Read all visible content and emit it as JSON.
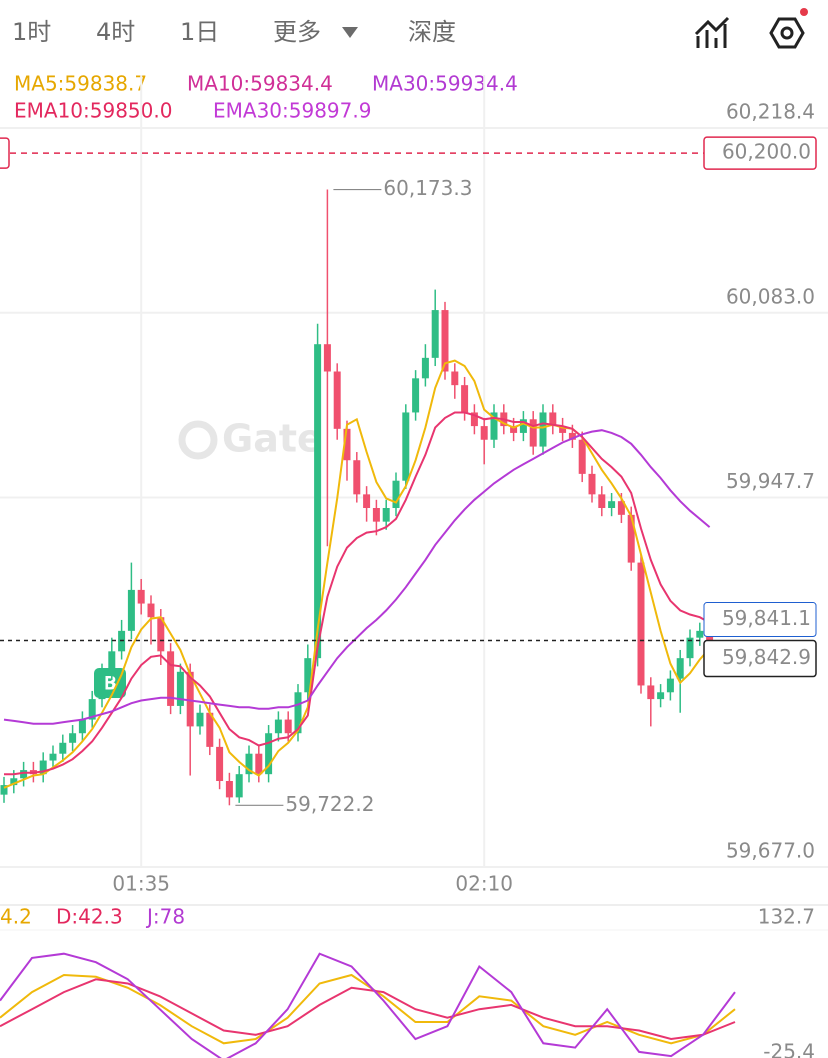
{
  "tabs": [
    "1时",
    "4时",
    "1日",
    "更多",
    "深度"
  ],
  "chart_data": [
    {
      "type": "candlestick",
      "indicators": [
        {
          "text": "MA5:59838.7",
          "color": "#e6a700"
        },
        {
          "text": "MA10:59834.4",
          "color": "#d02f97"
        },
        {
          "text": "MA30:59934.4",
          "color": "#b23ad2"
        },
        {
          "text": "EMA10:59850.0",
          "color": "#e3285e"
        },
        {
          "text": "EMA30:59897.9",
          "color": "#c23ad6"
        }
      ],
      "watermark": "Gate",
      "buy_marker": "B",
      "categories": [
        null,
        null,
        null,
        null,
        null,
        null,
        null,
        null,
        null,
        null,
        null,
        null,
        null,
        null,
        "01:35",
        null,
        null,
        null,
        null,
        null,
        null,
        null,
        null,
        null,
        null,
        null,
        null,
        null,
        null,
        null,
        null,
        null,
        null,
        null,
        null,
        null,
        null,
        null,
        null,
        null,
        null,
        null,
        null,
        null,
        null,
        null,
        null,
        null,
        null,
        "02:10",
        null,
        null,
        null,
        null,
        null,
        null,
        null,
        null,
        null,
        null,
        null,
        null,
        null,
        null,
        null,
        null,
        null,
        null,
        null,
        null,
        null,
        null,
        null
      ],
      "open": [
        59730,
        59737,
        59742,
        59748,
        59745,
        59755,
        59760,
        59768,
        59775,
        59785,
        59800,
        59820,
        59835,
        59850,
        59880,
        59870,
        59860,
        59835,
        59795,
        59820,
        59780,
        59790,
        59765,
        59740,
        59728,
        59745,
        59760,
        59745,
        59775,
        59785,
        59775,
        59805,
        59830,
        60060,
        60040,
        59998,
        59975,
        59950,
        59940,
        59930,
        59940,
        59960,
        60010,
        60035,
        60050,
        60085,
        60040,
        60030,
        60010,
        60000,
        59990,
        60010,
        60000,
        59995,
        60005,
        59985,
        60010,
        60000,
        59995,
        59990,
        59965,
        59950,
        59940,
        59945,
        59935,
        59900,
        59810,
        59800,
        59805,
        59815,
        59830,
        59845,
        59850
      ],
      "high": [
        59743,
        59748,
        59754,
        59754,
        59761,
        59766,
        59774,
        59781,
        59791,
        59806,
        59826,
        59845,
        59858,
        59900,
        59888,
        59876,
        59866,
        59841,
        59826,
        59826,
        59796,
        59796,
        59771,
        59746,
        59751,
        59766,
        59766,
        59781,
        59791,
        59791,
        59811,
        59840,
        60075,
        60173.3,
        60046,
        60004,
        59981,
        59956,
        59946,
        59946,
        59966,
        60016,
        60041,
        60060,
        60100,
        60091,
        60046,
        60036,
        60016,
        60006,
        60016,
        60016,
        60006,
        60011,
        60011,
        60016,
        60016,
        60006,
        60001,
        59996,
        59971,
        59956,
        59951,
        59951,
        59941,
        59906,
        59816,
        59811,
        59821,
        59836,
        59851,
        59856,
        59856
      ],
      "low": [
        59724,
        59731,
        59736,
        59739,
        59739,
        59749,
        59754,
        59762,
        59769,
        59779,
        59794,
        59814,
        59829,
        59844,
        59862,
        59840,
        59825,
        59789,
        59789,
        59744,
        59774,
        59759,
        59734,
        59722.2,
        59724,
        59739,
        59739,
        59739,
        59769,
        59769,
        59769,
        59799,
        59824,
        59912,
        59990,
        59960,
        59944,
        59930,
        59920,
        59924,
        59934,
        59954,
        60004,
        60029,
        60044,
        60034,
        60020,
        60004,
        59994,
        59972,
        59984,
        59994,
        59989,
        59989,
        59979,
        59979,
        59994,
        59989,
        59984,
        59959,
        59944,
        59934,
        59934,
        59929,
        59894,
        59804,
        59780,
        59794,
        59799,
        59790,
        59824,
        59839,
        59829
      ],
      "close": [
        59737,
        59742,
        59748,
        59745,
        59755,
        59760,
        59768,
        59775,
        59785,
        59800,
        59820,
        59835,
        59850,
        59880,
        59870,
        59860,
        59835,
        59795,
        59820,
        59780,
        59790,
        59765,
        59740,
        59728,
        59745,
        59760,
        59745,
        59775,
        59785,
        59775,
        59805,
        59830,
        60060,
        60040,
        59998,
        59975,
        59950,
        59940,
        59930,
        59940,
        59960,
        60010,
        60035,
        60050,
        60085,
        60040,
        60030,
        60010,
        60000,
        59990,
        60010,
        60000,
        59995,
        60005,
        59985,
        60010,
        60000,
        59995,
        59990,
        59965,
        59950,
        59940,
        59945,
        59935,
        59900,
        59810,
        59800,
        59805,
        59815,
        59830,
        59845,
        59850,
        59835
      ],
      "up_color": "#2ebd85",
      "down_color": "#f0506e",
      "series": [
        {
          "color": "#f0b90b",
          "values": [
            59735,
            59738,
            59741,
            59744,
            59745,
            59750,
            59755,
            59761,
            59769,
            59778,
            59790,
            59803,
            59818,
            59838,
            59851,
            59859,
            59860,
            59848,
            59836,
            59818,
            59804,
            59790,
            59779,
            59761,
            59754,
            59748,
            59744,
            59751,
            59762,
            59768,
            59777,
            59794,
            59851,
            59900,
            59947,
            60001,
            60005,
            59981,
            59959,
            59947,
            59944,
            59956,
            59975,
            59999,
            60028,
            60046,
            60048,
            60044,
            60033,
            60012,
            60006,
            60002,
            59999,
            60002,
            59999,
            59999,
            60001,
            59999,
            59998,
            59992,
            59980,
            59968,
            59958,
            59947,
            59934,
            59906,
            59878,
            59850,
            59826,
            59812,
            59819,
            59829,
            59837
          ]
        },
        {
          "color": "#e8356f",
          "values": [
            59745,
            59745,
            59746,
            59746,
            59747,
            59749,
            59752,
            59756,
            59762,
            59769,
            59779,
            59790,
            59801,
            59815,
            59825,
            59831,
            59832,
            59825,
            59824,
            59816,
            59810,
            59802,
            59790,
            59778,
            59772,
            59770,
            59766,
            59768,
            59771,
            59772,
            59778,
            59788,
            59838,
            59875,
            59897,
            59911,
            59918,
            59922,
            59923,
            59926,
            59932,
            59946,
            59963,
            59979,
            59999,
            60006,
            60010,
            60010,
            60008,
            60005,
            60006,
            60005,
            60003,
            60003,
            60000,
            60002,
            60001,
            60000,
            59998,
            59992,
            59984,
            59976,
            59970,
            59963,
            59951,
            59925,
            59902,
            59884,
            59872,
            59865,
            59862,
            59860,
            59856
          ]
        },
        {
          "color": "#b43ad6",
          "values": [
            59785,
            59784,
            59783,
            59782,
            59782,
            59782,
            59783,
            59784,
            59785,
            59787,
            59789,
            59791,
            59794,
            59797,
            59799,
            59800,
            59801,
            59801,
            59800,
            59799,
            59798,
            59797,
            59796,
            59795,
            59794,
            59794,
            59793,
            59793,
            59794,
            59794,
            59796,
            59799,
            59810,
            59820,
            59830,
            59838,
            59845,
            59852,
            59858,
            59865,
            59873,
            59882,
            59892,
            59902,
            59913,
            59922,
            59931,
            59939,
            59946,
            59952,
            59958,
            59963,
            59968,
            59972,
            59976,
            59980,
            59984,
            59988,
            59991,
            59994,
            59996,
            59997,
            59995,
            59992,
            59987,
            59979,
            59970,
            59962,
            59953,
            59945,
            59938,
            59932,
            59926
          ]
        }
      ],
      "ylim": [
        59677.0,
        60238.9
      ],
      "yticks": [
        {
          "value": 60218.4,
          "label": "60,218.4"
        },
        {
          "value": 60083.0,
          "label": "60,083.0"
        },
        {
          "value": 59947.7,
          "label": "59,947.7"
        },
        {
          "value": 59677.0,
          "label": "59,677.0"
        }
      ],
      "grid": true,
      "order_line": {
        "value": 60200.0,
        "label": "60,200.0",
        "color": "#e0284f"
      },
      "last_price": {
        "value": 59842.9,
        "label": "59,842.9"
      },
      "mark_price": {
        "value": 59841.1,
        "label": "59,841.1",
        "color": "#1f5fd0"
      },
      "annotations": [
        {
          "value": 60173.3,
          "label": "60,173.3"
        },
        {
          "value": 59722.2,
          "label": "59,722.2"
        }
      ]
    },
    {
      "type": "line",
      "legend": [
        {
          "text": "4.2",
          "color": "#e6a700"
        },
        {
          "text": "D:42.3",
          "color": "#e3285e"
        },
        {
          "text": "J:78",
          "color": "#b23ad2"
        }
      ],
      "series": [
        {
          "color": "#f0b90b",
          "values": [
            30,
            60,
            80,
            78,
            65,
            45,
            20,
            0,
            5,
            30,
            70,
            80,
            55,
            25,
            25,
            55,
            50,
            20,
            10,
            25,
            10,
            0,
            10,
            40
          ]
        },
        {
          "color": "#e8356f",
          "values": [
            20,
            40,
            60,
            75,
            70,
            55,
            35,
            15,
            10,
            20,
            45,
            65,
            60,
            40,
            30,
            40,
            45,
            30,
            20,
            20,
            15,
            5,
            10,
            25
          ]
        },
        {
          "color": "#b43ad6",
          "values": [
            50,
            100,
            105,
            95,
            75,
            40,
            5,
            -20,
            0,
            40,
            105,
            90,
            50,
            5,
            20,
            90,
            60,
            0,
            -5,
            40,
            -10,
            -15,
            10,
            60
          ]
        }
      ],
      "ylim": [
        -25.4,
        132.7
      ],
      "yticks": [
        132.7,
        -25.4
      ]
    }
  ]
}
